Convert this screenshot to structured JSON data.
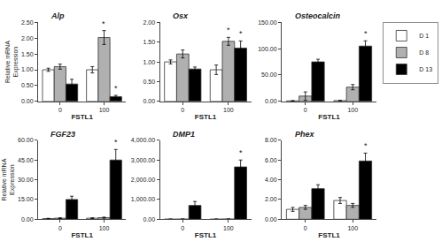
{
  "chart_data": [
    {
      "type": "bar",
      "title": "Alp",
      "ylabel": "Relative mRNA\nExpression",
      "xlabel": "FSTL1",
      "categories": [
        "0",
        "100"
      ],
      "series": [
        {
          "name": "D 1",
          "color": "white",
          "values": [
            1.0,
            1.0
          ],
          "errors": [
            0.05,
            0.1
          ]
        },
        {
          "name": "D 8",
          "color": "#b0b0b0",
          "values": [
            1.1,
            2.02
          ],
          "errors": [
            0.08,
            0.22
          ]
        },
        {
          "name": "D 13",
          "color": "black",
          "values": [
            0.55,
            0.15
          ],
          "errors": [
            0.15,
            0.04
          ]
        }
      ],
      "ylim": [
        0,
        2.5
      ],
      "yticks": [
        {
          "value": 0.0,
          "label": "0.00"
        },
        {
          "value": 0.5,
          "label": "0.50"
        },
        {
          "value": 1.0,
          "label": "1.00"
        },
        {
          "value": 1.5,
          "label": "1.50"
        },
        {
          "value": 2.0,
          "label": "2.00"
        },
        {
          "value": 2.5,
          "label": "2.50"
        }
      ],
      "grid": false,
      "annotations": [
        {
          "text": "*",
          "category": "100",
          "series": "D 8"
        },
        {
          "text": "*",
          "category": "100",
          "series": "D 13"
        }
      ]
    },
    {
      "type": "bar",
      "title": "Osx",
      "xlabel": "FSTL1",
      "categories": [
        "0",
        "100"
      ],
      "series": [
        {
          "name": "D 1",
          "color": "white",
          "values": [
            1.0,
            0.8
          ],
          "errors": [
            0.05,
            0.12
          ]
        },
        {
          "name": "D 8",
          "color": "#b0b0b0",
          "values": [
            1.2,
            1.52
          ],
          "errors": [
            0.1,
            0.1
          ]
        },
        {
          "name": "D 13",
          "color": "black",
          "values": [
            0.82,
            1.35
          ],
          "errors": [
            0.05,
            0.18
          ]
        }
      ],
      "ylim": [
        0,
        2.0
      ],
      "yticks": [
        {
          "value": 0.0,
          "label": "0.00"
        },
        {
          "value": 0.5,
          "label": "0.50"
        },
        {
          "value": 1.0,
          "label": "1.00"
        },
        {
          "value": 1.5,
          "label": "1.50"
        },
        {
          "value": 2.0,
          "label": "2.00"
        }
      ],
      "grid": false,
      "annotations": [
        {
          "text": "*",
          "category": "100",
          "series": "D 8"
        },
        {
          "text": "*",
          "category": "100",
          "series": "D 13"
        }
      ]
    },
    {
      "type": "bar",
      "title": "Osteocalcin",
      "xlabel": "FSTL1",
      "categories": [
        "0",
        "100"
      ],
      "series": [
        {
          "name": "D 1",
          "color": "white",
          "values": [
            1.0,
            1.5
          ],
          "errors": [
            0.5,
            0.5
          ]
        },
        {
          "name": "D 8",
          "color": "#b0b0b0",
          "values": [
            10.0,
            27.0
          ],
          "errors": [
            8.0,
            5.0
          ]
        },
        {
          "name": "D 13",
          "color": "black",
          "values": [
            75.0,
            105.0
          ],
          "errors": [
            5.0,
            10.0
          ]
        }
      ],
      "ylim": [
        0,
        150
      ],
      "yticks": [
        {
          "value": 0.0,
          "label": "0.00"
        },
        {
          "value": 50.0,
          "label": "50.00"
        },
        {
          "value": 100.0,
          "label": "100.00"
        },
        {
          "value": 150.0,
          "label": "150.00"
        }
      ],
      "grid": false,
      "legend": "upper right",
      "annotations": [
        {
          "text": "*",
          "category": "100",
          "series": "D 13"
        }
      ]
    },
    {
      "type": "bar",
      "title": "FGF23",
      "ylabel": "Relative mRNA\nExpression",
      "xlabel": "FSTL1",
      "categories": [
        "0",
        "100"
      ],
      "series": [
        {
          "name": "D 1",
          "color": "white",
          "values": [
            0.5,
            0.8
          ],
          "errors": [
            0.2,
            0.3
          ]
        },
        {
          "name": "D 8",
          "color": "#b0b0b0",
          "values": [
            0.8,
            1.2
          ],
          "errors": [
            0.3,
            0.4
          ]
        },
        {
          "name": "D 13",
          "color": "black",
          "values": [
            15.0,
            45.0
          ],
          "errors": [
            2.5,
            8.0
          ]
        }
      ],
      "ylim": [
        0,
        60
      ],
      "yticks": [
        {
          "value": 0.0,
          "label": "0.00"
        },
        {
          "value": 15.0,
          "label": "15.00"
        },
        {
          "value": 30.0,
          "label": "30.00"
        },
        {
          "value": 45.0,
          "label": "45.00"
        },
        {
          "value": 60.0,
          "label": "60.00"
        }
      ],
      "grid": false,
      "annotations": [
        {
          "text": "*",
          "category": "100",
          "series": "D 13"
        }
      ]
    },
    {
      "type": "bar",
      "title": "DMP1",
      "xlabel": "FSTL1",
      "categories": [
        "0",
        "100"
      ],
      "series": [
        {
          "name": "D 1",
          "color": "white",
          "values": [
            5.0,
            5.0
          ],
          "errors": [
            3.0,
            3.0
          ]
        },
        {
          "name": "D 8",
          "color": "#b0b0b0",
          "values": [
            8.0,
            10.0
          ],
          "errors": [
            4.0,
            5.0
          ]
        },
        {
          "name": "D 13",
          "color": "black",
          "values": [
            700.0,
            2650.0
          ],
          "errors": [
            200.0,
            350.0
          ]
        }
      ],
      "ylim": [
        0,
        4000
      ],
      "yticks": [
        {
          "value": 0.0,
          "label": "0.00"
        },
        {
          "value": 1000.0,
          "label": "1,000.00"
        },
        {
          "value": 2000.0,
          "label": "2,000.00"
        },
        {
          "value": 3000.0,
          "label": "3,000.00"
        },
        {
          "value": 4000.0,
          "label": "4,000.00"
        }
      ],
      "grid": false,
      "annotations": [
        {
          "text": "*",
          "category": "100",
          "series": "D 13"
        }
      ]
    },
    {
      "type": "bar",
      "title": "Phex",
      "xlabel": "FSTL1",
      "categories": [
        "0",
        "100"
      ],
      "series": [
        {
          "name": "D 1",
          "color": "white",
          "values": [
            1.0,
            1.9
          ],
          "errors": [
            0.2,
            0.3
          ]
        },
        {
          "name": "D 8",
          "color": "#b0b0b0",
          "values": [
            1.2,
            1.4
          ],
          "errors": [
            0.2,
            0.2
          ]
        },
        {
          "name": "D 13",
          "color": "black",
          "values": [
            3.1,
            5.9
          ],
          "errors": [
            0.4,
            0.8
          ]
        }
      ],
      "ylim": [
        0,
        8.0
      ],
      "yticks": [
        {
          "value": 0.0,
          "label": "0.00"
        },
        {
          "value": 2.0,
          "label": "2.00"
        },
        {
          "value": 4.0,
          "label": "4.00"
        },
        {
          "value": 6.0,
          "label": "6.00"
        },
        {
          "value": 8.0,
          "label": "8.00"
        }
      ],
      "grid": false,
      "annotations": [
        {
          "text": "*",
          "category": "100",
          "series": "D 13"
        }
      ]
    }
  ]
}
